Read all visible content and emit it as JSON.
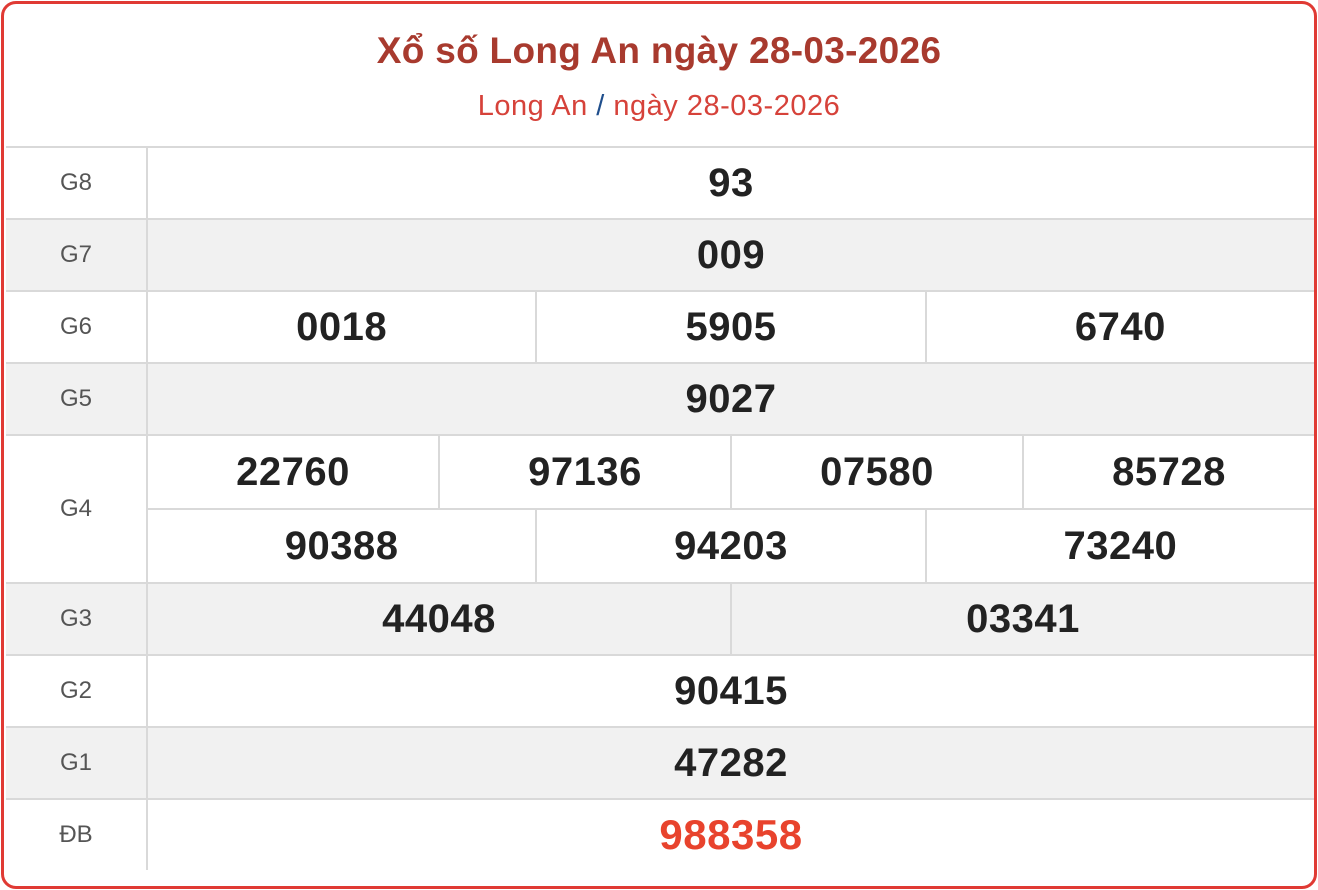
{
  "header": {
    "title": "Xổ số Long An ngày 28-03-2026",
    "breadcrumb_province": "Long An",
    "breadcrumb_sep": "/",
    "breadcrumb_date": "ngày 28-03-2026"
  },
  "colors": {
    "border": "#e03a34",
    "title": "#a83a2e",
    "special": "#e8432d"
  },
  "prizes": {
    "g8": {
      "label": "G8",
      "numbers": [
        "93"
      ]
    },
    "g7": {
      "label": "G7",
      "numbers": [
        "009"
      ]
    },
    "g6": {
      "label": "G6",
      "numbers": [
        "0018",
        "5905",
        "6740"
      ]
    },
    "g5": {
      "label": "G5",
      "numbers": [
        "9027"
      ]
    },
    "g4": {
      "label": "G4",
      "numbers": [
        "22760",
        "97136",
        "07580",
        "85728",
        "90388",
        "94203",
        "73240"
      ]
    },
    "g3": {
      "label": "G3",
      "numbers": [
        "44048",
        "03341"
      ]
    },
    "g2": {
      "label": "G2",
      "numbers": [
        "90415"
      ]
    },
    "g1": {
      "label": "G1",
      "numbers": [
        "47282"
      ]
    },
    "db": {
      "label": "ĐB",
      "numbers": [
        "988358"
      ]
    }
  }
}
